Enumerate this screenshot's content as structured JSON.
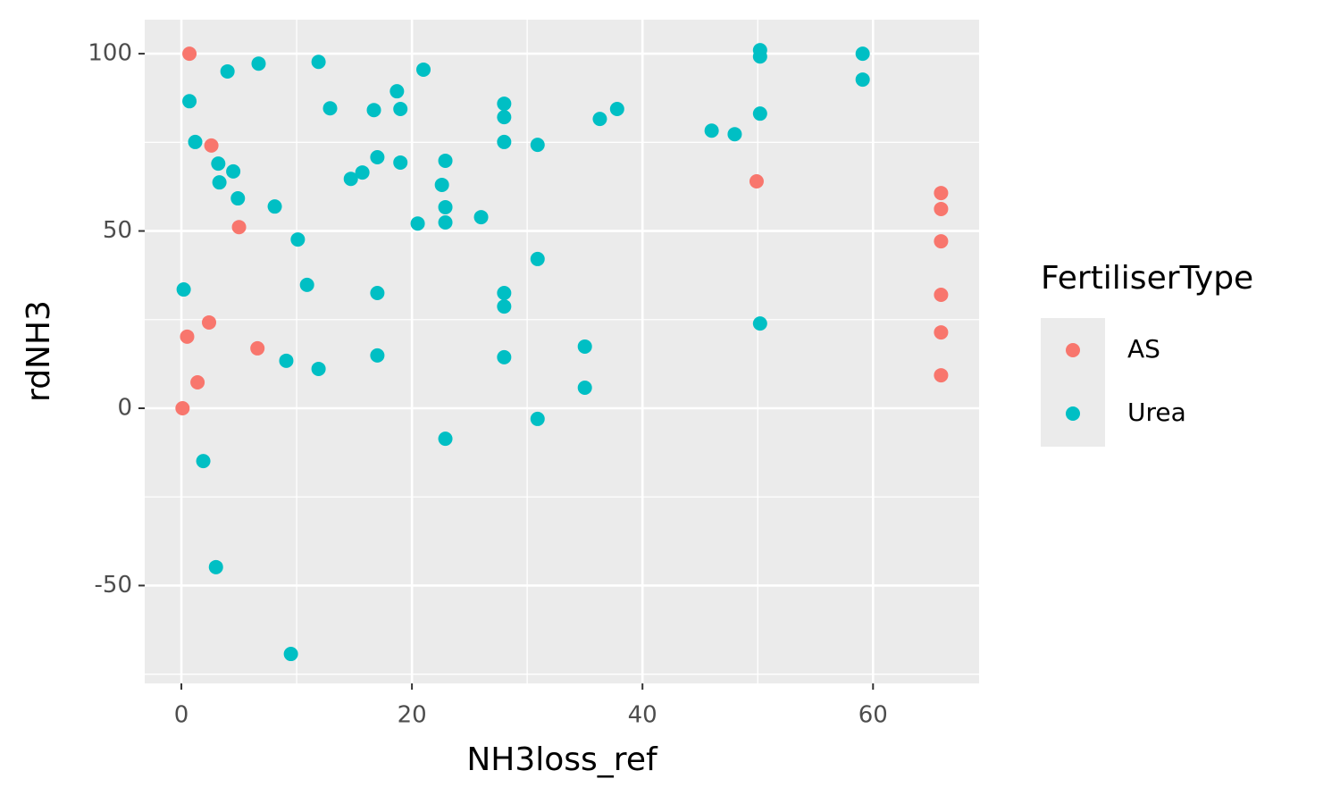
{
  "chart_data": {
    "type": "scatter",
    "x_label": "NH3loss_ref",
    "y_label": "rdNH3",
    "legend_title": "FertiliserType",
    "legend_position": "right",
    "grid": true,
    "xlim": [
      -3.18,
      69.2
    ],
    "ylim": [
      -77.6,
      109.6
    ],
    "xticks": [
      0,
      20,
      40,
      60
    ],
    "yticks": [
      -50,
      0,
      50,
      100
    ],
    "minor_xticks": [
      10,
      30,
      50
    ],
    "minor_yticks": [
      -75,
      -25,
      25,
      75
    ],
    "series": [
      {
        "name": "AS",
        "color": "#F8766D",
        "x": [
          0.7,
          2.6,
          5.0,
          2.4,
          0.5,
          6.6,
          1.4,
          0.1,
          49.9,
          65.9,
          65.9,
          65.9,
          65.9,
          65.9,
          65.9
        ],
        "values": [
          100,
          74.1,
          51.1,
          24.2,
          20.2,
          16.9,
          7.3,
          0,
          64.0,
          60.7,
          56.2,
          47.1,
          32.0,
          21.4,
          9.3
        ]
      },
      {
        "name": "Urea",
        "color": "#00BFC4",
        "x": [
          0.7,
          1.2,
          4.0,
          6.7,
          11.9,
          3.2,
          4.5,
          3.3,
          4.9,
          8.1,
          10.1,
          10.9,
          0.2,
          9.1,
          11.9,
          1.9,
          3.0,
          9.5,
          12.9,
          16.7,
          18.7,
          19.0,
          21.0,
          14.7,
          15.7,
          17.0,
          19.0,
          22.6,
          22.9,
          22.9,
          22.9,
          20.5,
          26.0,
          17.0,
          17.0,
          22.9,
          28.0,
          28.0,
          28.0,
          30.9,
          28.0,
          28.0,
          28.0,
          30.9,
          30.9,
          35.0,
          35.0,
          36.3,
          37.8,
          46.0,
          48.0,
          50.2,
          50.2,
          50.2,
          50.2,
          59.1,
          59.1
        ],
        "values": [
          86.6,
          75.1,
          95.0,
          97.2,
          97.7,
          69.0,
          66.8,
          63.7,
          59.2,
          56.9,
          47.6,
          34.8,
          33.5,
          13.4,
          11.1,
          -14.9,
          -44.8,
          -69.3,
          84.6,
          84.1,
          89.4,
          84.4,
          95.5,
          64.7,
          66.5,
          70.8,
          69.3,
          63.0,
          69.8,
          56.7,
          52.4,
          52.1,
          53.9,
          32.5,
          14.9,
          -8.6,
          85.9,
          82.1,
          75.1,
          74.3,
          32.5,
          28.7,
          14.4,
          42.1,
          -3.0,
          17.4,
          5.8,
          81.6,
          84.4,
          78.3,
          77.3,
          101.0,
          99.2,
          83.1,
          23.9,
          100.0,
          92.7
        ]
      }
    ]
  }
}
